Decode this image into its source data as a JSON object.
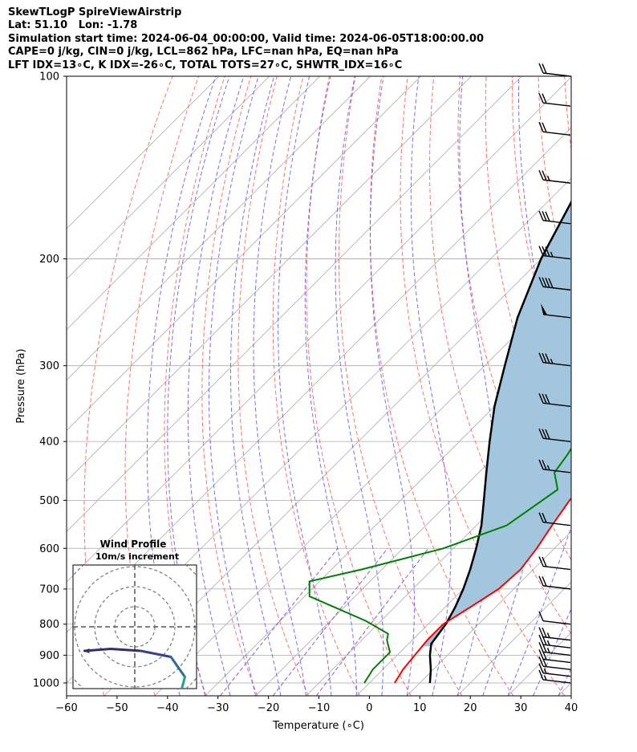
{
  "header": {
    "line1": "SkewTLogP SpireViewAirstrip",
    "line2": "Lat: 51.10   Lon: -1.78",
    "line3": "Simulation start time: 2024-06-04_00:00:00, Valid time: 2024-06-05T18:00:00.00",
    "line4": "CAPE=0 j/kg, CIN=0 j/kg, LCL=862 hPa, LFC=nan hPa, EQ=nan hPa",
    "line5": "LFT IDX=13∘C, K IDX=-26∘C, TOTAL TOTS=27∘C, SHWTR_IDX=16∘C"
  },
  "chart_data": {
    "type": "line",
    "xlabel": "Temperature (∘C)",
    "ylabel": "Pressure (hPa)",
    "xlim": [
      -60,
      40
    ],
    "ylim": [
      1050,
      100
    ],
    "y_scale": "log",
    "grid": true,
    "x_ticks": [
      -60,
      -50,
      -40,
      -30,
      -20,
      -10,
      0,
      10,
      20,
      30,
      40
    ],
    "y_ticks": [
      1000,
      900,
      800,
      700,
      600,
      500,
      400,
      300,
      200,
      100
    ],
    "colors": {
      "temperature": "#ff0000",
      "dewpoint": "#008000",
      "parcel": "#000000",
      "cape_fill": "#a3c6df",
      "dry_adiabats": "#ff5555",
      "moist_adiabats": "#5555ff",
      "mixing_ratio": "#8b3fbf",
      "isotherms": "#aaaaaa"
    },
    "series": [
      {
        "key": "temperature",
        "points": [
          [
            100,
            18.5
          ],
          [
            112,
            14
          ],
          [
            125,
            11
          ],
          [
            140,
            9
          ],
          [
            160,
            5
          ],
          [
            180,
            1
          ],
          [
            200,
            -1
          ],
          [
            220,
            -2.5
          ],
          [
            240,
            -4
          ],
          [
            260,
            -5
          ],
          [
            280,
            -4.5
          ],
          [
            300,
            -3.5
          ],
          [
            330,
            -2
          ],
          [
            360,
            0
          ],
          [
            380,
            1.5
          ],
          [
            400,
            2
          ],
          [
            450,
            2.5
          ],
          [
            500,
            3.5
          ],
          [
            550,
            5
          ],
          [
            600,
            6.5
          ],
          [
            650,
            7.5
          ],
          [
            700,
            7
          ],
          [
            750,
            5
          ],
          [
            800,
            3
          ],
          [
            850,
            3
          ],
          [
            900,
            3.5
          ],
          [
            950,
            4
          ],
          [
            1000,
            5
          ]
        ]
      },
      {
        "key": "dewpoint",
        "points": [
          [
            100,
            0
          ],
          [
            110,
            -5
          ],
          [
            150,
            -17
          ],
          [
            165,
            -16
          ],
          [
            180,
            -13
          ],
          [
            200,
            -12
          ],
          [
            230,
            -11
          ],
          [
            260,
            -12
          ],
          [
            290,
            -12
          ],
          [
            300,
            -12
          ],
          [
            330,
            -9
          ],
          [
            360,
            -8
          ],
          [
            380,
            -8
          ],
          [
            420,
            -6
          ],
          [
            450,
            -5
          ],
          [
            480,
            -1
          ],
          [
            550,
            -4
          ],
          [
            600,
            -12
          ],
          [
            650,
            -24
          ],
          [
            680,
            -32
          ],
          [
            720,
            -29
          ],
          [
            790,
            -13
          ],
          [
            830,
            -6
          ],
          [
            850,
            -5
          ],
          [
            890,
            -2
          ],
          [
            900,
            -2
          ],
          [
            950,
            -2
          ],
          [
            1000,
            -1
          ]
        ]
      },
      {
        "key": "parcel",
        "points": [
          [
            100,
            -57
          ],
          [
            150,
            -57
          ],
          [
            200,
            -50
          ],
          [
            250,
            -43
          ],
          [
            300,
            -36
          ],
          [
            350,
            -30
          ],
          [
            400,
            -24
          ],
          [
            450,
            -18.5
          ],
          [
            500,
            -13.5
          ],
          [
            550,
            -9
          ],
          [
            600,
            -5.5
          ],
          [
            650,
            -2.5
          ],
          [
            700,
            0
          ],
          [
            750,
            2
          ],
          [
            800,
            3.5
          ],
          [
            862,
            4.5
          ],
          [
            900,
            6.5
          ],
          [
            950,
            9.5
          ],
          [
            1000,
            12
          ]
        ]
      }
    ],
    "wind_barbs": [
      {
        "p": 1000,
        "speed": 15
      },
      {
        "p": 975,
        "speed": 15
      },
      {
        "p": 950,
        "speed": 20
      },
      {
        "p": 925,
        "speed": 20
      },
      {
        "p": 900,
        "speed": 25
      },
      {
        "p": 875,
        "speed": 25
      },
      {
        "p": 850,
        "speed": 25
      },
      {
        "p": 800,
        "speed": 10
      },
      {
        "p": 700,
        "speed": 20
      },
      {
        "p": 650,
        "speed": 20
      },
      {
        "p": 550,
        "speed": 20
      },
      {
        "p": 450,
        "speed": 25
      },
      {
        "p": 400,
        "speed": 30
      },
      {
        "p": 350,
        "speed": 30
      },
      {
        "p": 300,
        "speed": 35
      },
      {
        "p": 250,
        "speed": 50
      },
      {
        "p": 225,
        "speed": 40
      },
      {
        "p": 200,
        "speed": 35
      },
      {
        "p": 175,
        "speed": 30
      },
      {
        "p": 150,
        "speed": 25
      },
      {
        "p": 125,
        "speed": 20
      },
      {
        "p": 112,
        "speed": 20
      },
      {
        "p": 100,
        "speed": 20
      }
    ],
    "inset": {
      "title": "Wind Profile",
      "subtitle": "10m/s increment",
      "rings_ms": [
        10,
        20,
        30,
        40
      ],
      "hodograph": [
        [
          -2.5,
          1.2
        ],
        [
          -1.2,
          1.1
        ],
        [
          0.3,
          1.2
        ],
        [
          1.8,
          1.5
        ],
        [
          2.5,
          2.5
        ],
        [
          2.2,
          3.6
        ],
        [
          2.6,
          3.4
        ]
      ]
    }
  }
}
